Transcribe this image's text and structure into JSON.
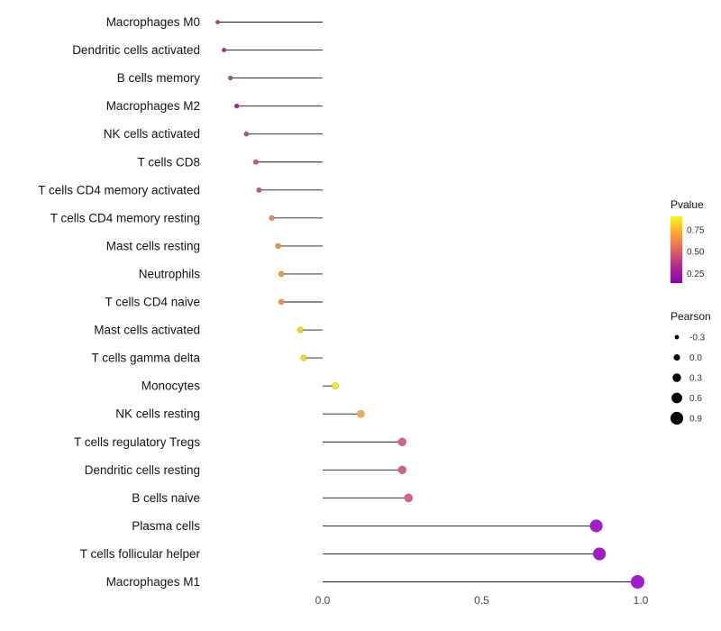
{
  "chart_data": {
    "type": "scatter",
    "subtype": "lollipop",
    "orientation": "horizontal",
    "title": "",
    "xlabel": "",
    "ylabel": "",
    "background": "#ffffff",
    "stem_color": "#1a1a1a",
    "x_axis": {
      "tick_labels": [
        "0.0",
        "0.5",
        "1.0"
      ],
      "tick_values": [
        0.0,
        0.5,
        1.0
      ],
      "range": [
        -0.42,
        1.08
      ]
    },
    "points": [
      {
        "label": "Macrophages M0",
        "pearson": -0.33,
        "color": "#b93a8a"
      },
      {
        "label": "Dendritic cells activated",
        "pearson": -0.31,
        "color": "#ad2d92"
      },
      {
        "label": "B cells memory",
        "pearson": -0.29,
        "color": "#c2418b"
      },
      {
        "label": "Macrophages M2",
        "pearson": -0.27,
        "color": "#a82499"
      },
      {
        "label": "NK cells activated",
        "pearson": -0.24,
        "color": "#c64589"
      },
      {
        "label": "T cells CD8",
        "pearson": -0.21,
        "color": "#d3537b"
      },
      {
        "label": "T cells CD4 memory activated",
        "pearson": -0.2,
        "color": "#d05278"
      },
      {
        "label": "T cells CD4 memory resting",
        "pearson": -0.16,
        "color": "#ec8a54"
      },
      {
        "label": "Mast cells resting",
        "pearson": -0.14,
        "color": "#ee8d50"
      },
      {
        "label": "Neutrophils",
        "pearson": -0.13,
        "color": "#f29b43"
      },
      {
        "label": "T cells CD4 naive",
        "pearson": -0.13,
        "color": "#ef8f4b"
      },
      {
        "label": "Mast cells activated",
        "pearson": -0.07,
        "color": "#f6d625"
      },
      {
        "label": "T cells gamma delta",
        "pearson": -0.06,
        "color": "#f5d924"
      },
      {
        "label": "Monocytes",
        "pearson": 0.04,
        "color": "#f9e721"
      },
      {
        "label": "NK cells resting",
        "pearson": 0.12,
        "color": "#f4ad43"
      },
      {
        "label": "T cells regulatory Tregs",
        "pearson": 0.25,
        "color": "#d6608a"
      },
      {
        "label": "Dendritic cells resting",
        "pearson": 0.25,
        "color": "#d55f87"
      },
      {
        "label": "B cells naive",
        "pearson": 0.27,
        "color": "#d8628d"
      },
      {
        "label": "Plasma cells",
        "pearson": 0.86,
        "color": "#a51dc9"
      },
      {
        "label": "T cells follicular helper",
        "pearson": 0.87,
        "color": "#a31bc7"
      },
      {
        "label": "Macrophages M1",
        "pearson": 0.99,
        "color": "#a717d6"
      }
    ],
    "legend_pvalue": {
      "title": "Pvalue",
      "tick_labels": [
        "0.75",
        "0.50",
        "0.25"
      ],
      "gradient_top_to_bottom": [
        "#f0f921",
        "#fcce25",
        "#fca636",
        "#f2844b",
        "#e16462",
        "#cc4778",
        "#b12a90",
        "#9c179e",
        "#8405a7"
      ]
    },
    "legend_pearson": {
      "title": "Pearson",
      "items": [
        {
          "label": "-0.3",
          "value": -0.3
        },
        {
          "label": "0.0",
          "value": 0.0
        },
        {
          "label": "0.3",
          "value": 0.3
        },
        {
          "label": "0.6",
          "value": 0.6
        },
        {
          "label": "0.9",
          "value": 0.9
        }
      ]
    }
  }
}
